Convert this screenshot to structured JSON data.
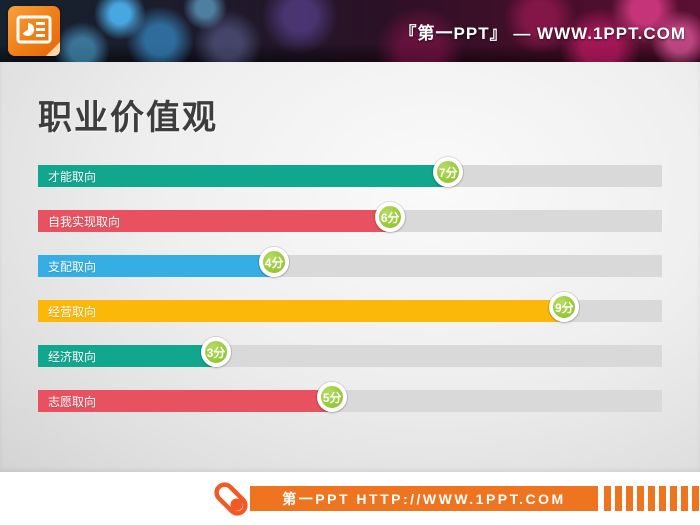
{
  "header": {
    "site_text": "『第一PPT』 —  WWW.1PPT.COM",
    "logo_icon": "powerpoint-document-icon"
  },
  "slide": {
    "title": "职业价值观"
  },
  "chart_data": {
    "type": "bar",
    "orientation": "horizontal",
    "title": "职业价值观",
    "categories": [
      "才能取向",
      "自我实现取向",
      "支配取向",
      "经营取向",
      "经济取向",
      "志愿取向"
    ],
    "values": [
      7,
      6,
      4,
      9,
      3,
      5
    ],
    "value_labels": [
      "7分",
      "6分",
      "4分",
      "9分",
      "3分",
      "5分"
    ],
    "value_suffix": "分",
    "xlim": [
      0,
      10
    ],
    "bar_colors": [
      "#10a78e",
      "#e8515f",
      "#35aee3",
      "#fcb808",
      "#10a78e",
      "#e8515f"
    ],
    "track_color": "#d9d9d9",
    "badge_color": "#9ccb3d",
    "grid": false,
    "legend": false,
    "axis_labels_visible": false
  },
  "footer": {
    "banner_text": "第一PPT HTTP://WWW.1PPT.COM",
    "accent_color": "#ee7420",
    "icon": "capsule-icon"
  }
}
